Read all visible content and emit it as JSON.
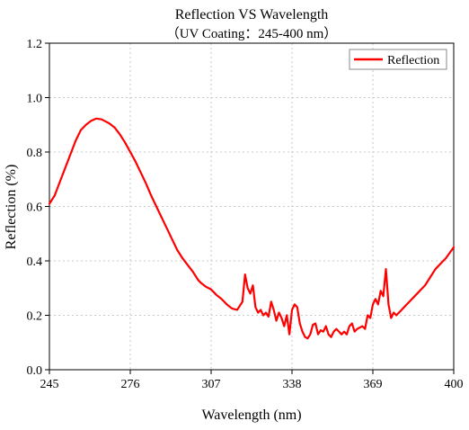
{
  "chart_data": {
    "type": "line",
    "title": "Reflection VS Wavelength",
    "subtitle": "（UV Coating：245-400 nm）",
    "xlabel": "Wavelength (nm)",
    "ylabel": "Reflection (%)",
    "xlim": [
      245,
      400
    ],
    "ylim": [
      0.0,
      1.2
    ],
    "xticks": [
      245,
      276,
      307,
      338,
      369,
      400
    ],
    "xtick_labels": [
      "245",
      "276",
      "307",
      "338",
      "369",
      "400"
    ],
    "yticks": [
      0.0,
      0.2,
      0.4,
      0.6,
      0.8,
      1.0,
      1.2
    ],
    "ytick_labels": [
      "0.0",
      "0.2",
      "0.4",
      "0.6",
      "0.8",
      "1.0",
      "1.2"
    ],
    "grid": true,
    "legend_position": "top-right",
    "series": [
      {
        "name": "Reflection",
        "color": "#ff0000",
        "x": [
          245,
          247,
          249,
          251,
          253,
          255,
          257,
          259,
          261,
          263,
          265,
          266,
          268,
          270,
          272,
          274,
          276,
          278,
          280,
          282,
          284,
          286,
          288,
          290,
          292,
          294,
          296,
          298,
          300,
          302,
          303,
          305,
          307,
          309,
          311,
          313,
          315,
          317,
          319,
          320,
          321,
          322,
          323,
          324,
          325,
          326,
          327,
          328,
          329,
          330,
          331,
          332,
          333,
          334,
          335,
          336,
          337,
          338,
          339,
          340,
          341,
          342,
          343,
          344,
          345,
          346,
          347,
          348,
          349,
          350,
          351,
          352,
          353,
          354,
          355,
          356,
          357,
          358,
          359,
          360,
          361,
          362,
          363,
          364,
          365,
          366,
          367,
          368,
          369,
          370,
          371,
          372,
          373,
          374,
          375,
          376,
          377,
          378,
          379,
          380,
          381,
          382,
          383,
          385,
          387,
          389,
          391,
          393,
          395,
          397,
          400
        ],
        "y": [
          0.61,
          0.64,
          0.69,
          0.74,
          0.79,
          0.84,
          0.88,
          0.9,
          0.915,
          0.923,
          0.92,
          0.915,
          0.905,
          0.89,
          0.865,
          0.835,
          0.8,
          0.765,
          0.725,
          0.685,
          0.64,
          0.6,
          0.56,
          0.52,
          0.48,
          0.44,
          0.41,
          0.385,
          0.36,
          0.33,
          0.32,
          0.305,
          0.295,
          0.275,
          0.26,
          0.24,
          0.225,
          0.22,
          0.25,
          0.35,
          0.3,
          0.28,
          0.31,
          0.23,
          0.21,
          0.22,
          0.2,
          0.21,
          0.195,
          0.25,
          0.22,
          0.18,
          0.21,
          0.19,
          0.16,
          0.2,
          0.13,
          0.22,
          0.24,
          0.23,
          0.17,
          0.14,
          0.12,
          0.115,
          0.13,
          0.165,
          0.17,
          0.13,
          0.145,
          0.14,
          0.16,
          0.13,
          0.12,
          0.14,
          0.15,
          0.14,
          0.13,
          0.14,
          0.13,
          0.16,
          0.17,
          0.14,
          0.15,
          0.155,
          0.16,
          0.15,
          0.2,
          0.19,
          0.24,
          0.26,
          0.24,
          0.29,
          0.27,
          0.37,
          0.24,
          0.19,
          0.21,
          0.2,
          0.21,
          0.22,
          0.23,
          0.24,
          0.25,
          0.27,
          0.29,
          0.31,
          0.34,
          0.37,
          0.39,
          0.41,
          0.45
        ]
      }
    ]
  }
}
